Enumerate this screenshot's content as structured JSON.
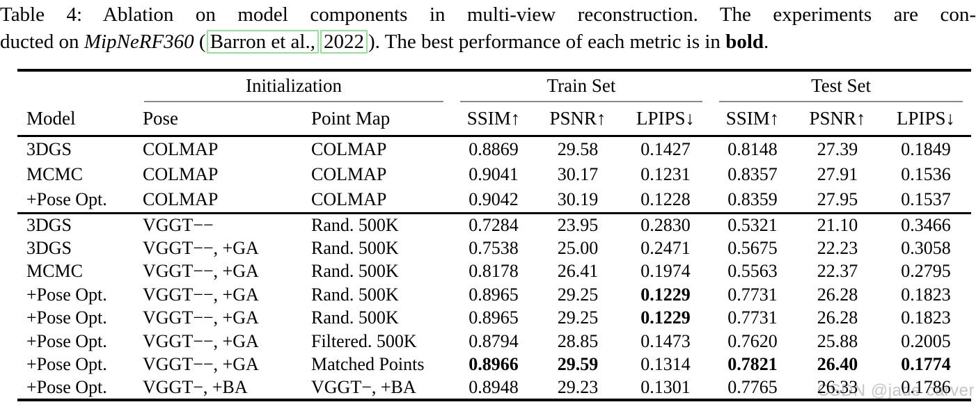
{
  "caption": {
    "line1": "Table 4: Ablation on model components in multi-view reconstruction. The experiments are con-",
    "line2_prefix": "ducted on ",
    "line2_italic": "MipNeRF360",
    "line2_open_paren": "(",
    "cite_authors": "Barron et al.,",
    "cite_year": "2022",
    "line2_after": "). The best performance of each metric is in ",
    "line2_bold": "bold",
    "line2_period": "."
  },
  "table": {
    "spanners": [
      {
        "label": "Initialization"
      },
      {
        "label": "Train Set"
      },
      {
        "label": "Test Set"
      }
    ],
    "col_headers": [
      "Model",
      "Pose",
      "Point Map",
      "SSIM↑",
      "PSNR↑",
      "LPIPS↓",
      "SSIM↑",
      "PSNR↑",
      "LPIPS↓"
    ],
    "groups": [
      {
        "rows": [
          {
            "cells": [
              "3DGS",
              "COLMAP",
              "COLMAP",
              "0.8869",
              "29.58",
              "0.1427",
              "0.8148",
              "27.39",
              "0.1849"
            ],
            "bold": []
          },
          {
            "cells": [
              "MCMC",
              "COLMAP",
              "COLMAP",
              "0.9041",
              "30.17",
              "0.1231",
              "0.8357",
              "27.91",
              "0.1536"
            ],
            "bold": []
          },
          {
            "cells": [
              "+Pose Opt.",
              "COLMAP",
              "COLMAP",
              "0.9042",
              "30.19",
              "0.1228",
              "0.8359",
              "27.95",
              "0.1537"
            ],
            "bold": []
          }
        ]
      },
      {
        "rows": [
          {
            "cells": [
              "3DGS",
              "VGGT−−",
              "Rand. 500K",
              "0.7284",
              "23.95",
              "0.2830",
              "0.5321",
              "21.10",
              "0.3466"
            ],
            "bold": []
          },
          {
            "cells": [
              "3DGS",
              "VGGT−−, +GA",
              "Rand. 500K",
              "0.7538",
              "25.00",
              "0.2471",
              "0.5675",
              "22.23",
              "0.3058"
            ],
            "bold": []
          },
          {
            "cells": [
              "MCMC",
              "VGGT−−, +GA",
              "Rand. 500K",
              "0.8178",
              "26.41",
              "0.1974",
              "0.5563",
              "22.37",
              "0.2795"
            ],
            "bold": []
          },
          {
            "cells": [
              "+Pose Opt.",
              "VGGT−−, +GA",
              "Rand. 500K",
              "0.8965",
              "29.25",
              "0.1229",
              "0.7731",
              "26.28",
              "0.1823"
            ],
            "bold": [
              5
            ]
          },
          {
            "cells": [
              "+Pose Opt.",
              "VGGT−−, +GA",
              "Rand. 500K",
              "0.8965",
              "29.25",
              "0.1229",
              "0.7731",
              "26.28",
              "0.1823"
            ],
            "bold": [
              5
            ]
          },
          {
            "cells": [
              "+Pose Opt.",
              "VGGT−−, +GA",
              "Filtered. 500K",
              "0.8794",
              "28.85",
              "0.1473",
              "0.7620",
              "25.88",
              "0.2005"
            ],
            "bold": []
          },
          {
            "cells": [
              "+Pose Opt.",
              "VGGT−−, +GA",
              "Matched Points",
              "0.8966",
              "29.59",
              "0.1314",
              "0.7821",
              "26.40",
              "0.1774"
            ],
            "bold": [
              3,
              4,
              6,
              7,
              8
            ]
          },
          {
            "cells": [
              "+Pose Opt.",
              "VGGT−, +BA",
              "VGGT−, +BA",
              "0.8948",
              "29.23",
              "0.1301",
              "0.7765",
              "26.33",
              "0.1786"
            ],
            "bold": []
          }
        ]
      }
    ]
  },
  "watermark": {
    "text": "CSDN @jade carver",
    "color": "#c4c5cc"
  },
  "colors": {
    "citation_box_green": "#93e493",
    "cmidrule_gray": "#8a8a8a",
    "rule_black": "#000000"
  }
}
